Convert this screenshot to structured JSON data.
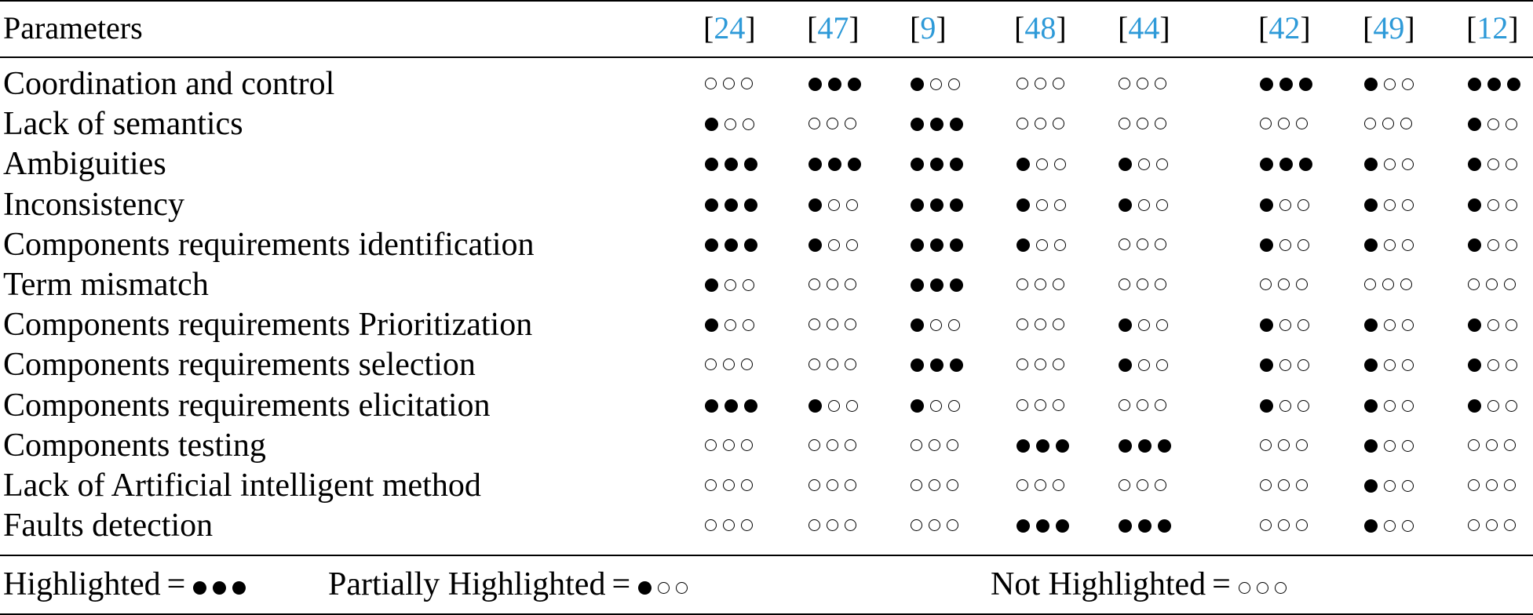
{
  "table": {
    "param_header": "Parameters",
    "refs": [
      {
        "open": "[",
        "num": "24",
        "close": "]"
      },
      {
        "open": "[",
        "num": "47",
        "close": "]"
      },
      {
        "open": "[",
        "num": "9",
        "close": "]"
      },
      {
        "open": "[",
        "num": "48",
        "close": "]"
      },
      {
        "open": "[",
        "num": "44",
        "close": "]"
      },
      {
        "open": "[",
        "num": "42",
        "close": "]"
      },
      {
        "open": "[",
        "num": "49",
        "close": "]"
      },
      {
        "open": "[",
        "num": "12",
        "close": "]"
      }
    ],
    "rows": [
      {
        "label": "Coordination and control",
        "ratings": [
          0,
          3,
          1,
          0,
          0,
          3,
          1,
          3
        ]
      },
      {
        "label": "Lack of semantics",
        "ratings": [
          1,
          0,
          3,
          0,
          0,
          0,
          0,
          1
        ]
      },
      {
        "label": "Ambiguities",
        "ratings": [
          3,
          3,
          3,
          1,
          1,
          3,
          1,
          1
        ]
      },
      {
        "label": "Inconsistency",
        "ratings": [
          3,
          1,
          3,
          1,
          1,
          1,
          1,
          1
        ]
      },
      {
        "label": "Components requirements identification",
        "ratings": [
          3,
          1,
          3,
          1,
          0,
          1,
          1,
          1
        ]
      },
      {
        "label": "Term mismatch",
        "ratings": [
          1,
          0,
          3,
          0,
          0,
          0,
          0,
          0
        ]
      },
      {
        "label": "Components requirements Prioritization",
        "ratings": [
          1,
          0,
          1,
          0,
          1,
          1,
          1,
          1
        ]
      },
      {
        "label": "Components requirements selection",
        "ratings": [
          0,
          0,
          3,
          0,
          1,
          1,
          1,
          1
        ]
      },
      {
        "label": "Components requirements elicitation",
        "ratings": [
          3,
          1,
          1,
          0,
          0,
          1,
          1,
          1
        ]
      },
      {
        "label": "Components testing",
        "ratings": [
          0,
          0,
          0,
          3,
          3,
          0,
          1,
          0
        ]
      },
      {
        "label": "Lack of Artificial intelligent method",
        "ratings": [
          0,
          0,
          0,
          0,
          0,
          0,
          1,
          0
        ]
      },
      {
        "label": "Faults detection",
        "ratings": [
          0,
          0,
          0,
          3,
          3,
          0,
          1,
          0
        ]
      }
    ]
  },
  "legend": [
    {
      "label": "Highlighted",
      "equals": "=",
      "rating": 3
    },
    {
      "label": "Partially Highlighted",
      "equals": "=",
      "rating": 1
    },
    {
      "label": "Not Highlighted",
      "equals": "=",
      "rating": 0
    }
  ]
}
